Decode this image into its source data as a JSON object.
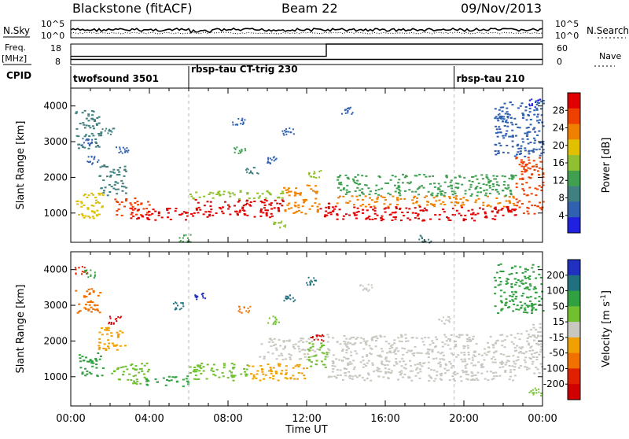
{
  "header": {
    "station": "Blackstone (fitACF)",
    "beam": "Beam 22",
    "date": "09/Nov/2013"
  },
  "noise_panel": {
    "left_label": "N.Sky",
    "right_label": "N.Search",
    "left_ticks": [
      "10^5",
      "10^0"
    ],
    "right_ticks": [
      "10^5",
      "10^0"
    ]
  },
  "freq_panel": {
    "freq_label": "Freq.",
    "freq_unit": "[MHz]",
    "left_ticks": [
      "18",
      "8"
    ],
    "right_ticks": [
      "60",
      "0"
    ],
    "nave_label": "Nave",
    "freq_value_mhz": 10.5,
    "nave_before": 24,
    "nave_after": 60,
    "nave_switch_hour": 13.0
  },
  "cpid": {
    "label": "CPID",
    "programs": [
      {
        "name": "twofsound 3501",
        "start_hour": 0.0
      },
      {
        "name": "rbsp-tau CT-trig 230",
        "start_hour": 6.0
      },
      {
        "name": "rbsp-tau 210",
        "start_hour": 19.5
      }
    ]
  },
  "colorbars": {
    "power": {
      "label": "Power [dB]",
      "ticks": [
        "28",
        "24",
        "20",
        "16",
        "12",
        "8",
        "4"
      ],
      "colors": [
        "#e00000",
        "#f04000",
        "#f08000",
        "#e0c000",
        "#90c030",
        "#40a050",
        "#408080",
        "#3060b0",
        "#2020e0"
      ]
    },
    "velocity": {
      "label": "Velocity [m s",
      "label_sup": "-1",
      "label_end": "]",
      "ticks": [
        "200",
        "100",
        "50",
        "15",
        "-15",
        "-50",
        "-100",
        "-200"
      ],
      "colors": [
        "#2030c0",
        "#207080",
        "#30a040",
        "#70c030",
        "#c8c8c0",
        "#f0a000",
        "#f07000",
        "#e02000",
        "#d00000"
      ]
    }
  },
  "chart_data": [
    {
      "type": "heatmap",
      "title": "Power",
      "xlabel": "Time UT",
      "ylabel": "Slant Range [km]",
      "xlim": [
        0,
        24
      ],
      "ylim": [
        180,
        4500
      ],
      "x_ticks": [
        "00:00",
        "04:00",
        "08:00",
        "12:00",
        "16:00",
        "20:00",
        "00:00"
      ],
      "y_ticks": [
        "1000",
        "2000",
        "3000",
        "4000"
      ],
      "colorbar": "Power [dB]",
      "bands": [
        {
          "t0": 0.2,
          "t1": 1.6,
          "r0": 800,
          "r1": 1600,
          "value": 18
        },
        {
          "t0": 1.4,
          "t1": 2.8,
          "r0": 1500,
          "r1": 2400,
          "value": 10
        },
        {
          "t0": 2.2,
          "t1": 4.0,
          "r0": 950,
          "r1": 1450,
          "value": 24
        },
        {
          "t0": 3.0,
          "t1": 6.0,
          "r0": 800,
          "r1": 1150,
          "value": 28
        },
        {
          "t0": 6.0,
          "t1": 10.8,
          "r0": 900,
          "r1": 1400,
          "value": 27
        },
        {
          "t0": 6.0,
          "t1": 10.8,
          "r0": 1400,
          "r1": 1650,
          "value": 16
        },
        {
          "t0": 10.8,
          "t1": 12.6,
          "r0": 1000,
          "r1": 1800,
          "value": 22
        },
        {
          "t0": 12.6,
          "t1": 13.5,
          "r0": 900,
          "r1": 1300,
          "value": 28
        },
        {
          "t0": 13.5,
          "t1": 22.6,
          "r0": 800,
          "r1": 1200,
          "value": 28
        },
        {
          "t0": 13.5,
          "t1": 22.6,
          "r0": 1200,
          "r1": 1500,
          "value": 22
        },
        {
          "t0": 13.5,
          "t1": 22.6,
          "r0": 1500,
          "r1": 2100,
          "value": 13
        },
        {
          "t0": 22.6,
          "t1": 24.0,
          "r0": 1000,
          "r1": 2600,
          "value": 26
        },
        {
          "t0": 0.2,
          "t1": 1.5,
          "r0": 2800,
          "r1": 3900,
          "value": 9
        },
        {
          "t0": 21.5,
          "t1": 24.0,
          "r0": 2600,
          "r1": 4200,
          "value": 8
        }
      ],
      "scatter_points": [
        {
          "t": 0.8,
          "r": 3000,
          "value": 6
        },
        {
          "t": 1.1,
          "r": 2500,
          "value": 8
        },
        {
          "t": 1.9,
          "r": 3300,
          "value": 10
        },
        {
          "t": 2.6,
          "r": 2800,
          "value": 7
        },
        {
          "t": 5.8,
          "r": 300,
          "value": 12
        },
        {
          "t": 8.5,
          "r": 3600,
          "value": 6
        },
        {
          "t": 8.6,
          "r": 2800,
          "value": 14
        },
        {
          "t": 9.2,
          "r": 2200,
          "value": 10
        },
        {
          "t": 10.2,
          "r": 2500,
          "value": 8
        },
        {
          "t": 10.6,
          "r": 700,
          "value": 17
        },
        {
          "t": 11.0,
          "r": 3300,
          "value": 6
        },
        {
          "t": 12.4,
          "r": 2100,
          "value": 15
        },
        {
          "t": 14.0,
          "r": 3900,
          "value": 6
        },
        {
          "t": 18.0,
          "r": 300,
          "value": 9
        },
        {
          "t": 22.0,
          "r": 3700,
          "value": 6
        },
        {
          "t": 23.6,
          "r": 4100,
          "value": 5
        }
      ]
    },
    {
      "type": "heatmap",
      "title": "Velocity",
      "xlabel": "Time UT",
      "ylabel": "Slant Range [km]",
      "xlim": [
        0,
        24
      ],
      "ylim": [
        180,
        4500
      ],
      "x_ticks": [
        "00:00",
        "04:00",
        "08:00",
        "12:00",
        "16:00",
        "20:00",
        "00:00"
      ],
      "y_ticks": [
        "1000",
        "2000",
        "3000",
        "4000"
      ],
      "colorbar": "Velocity [m s^-1]",
      "bands": [
        {
          "t0": 0.2,
          "t1": 1.5,
          "r0": 2800,
          "r1": 3500,
          "value": -100
        },
        {
          "t0": 0.3,
          "t1": 1.6,
          "r0": 1000,
          "r1": 1700,
          "value": 120
        },
        {
          "t0": 1.3,
          "t1": 2.8,
          "r0": 1700,
          "r1": 2400,
          "value": -60
        },
        {
          "t0": 2.0,
          "t1": 4.0,
          "r0": 800,
          "r1": 1400,
          "value": 40
        },
        {
          "t0": 3.8,
          "t1": 6.0,
          "r0": 750,
          "r1": 1050,
          "value": 120
        },
        {
          "t0": 6.0,
          "t1": 9.0,
          "r0": 900,
          "r1": 1400,
          "value": 40
        },
        {
          "t0": 9.0,
          "t1": 12.0,
          "r0": 900,
          "r1": 1400,
          "value": -50
        },
        {
          "t0": 9.5,
          "t1": 12.5,
          "r0": 1500,
          "r1": 2100,
          "value": -20
        },
        {
          "t0": 12.0,
          "t1": 13.0,
          "r0": 1200,
          "r1": 2000,
          "value": 30
        },
        {
          "t0": 13.0,
          "t1": 22.6,
          "r0": 900,
          "r1": 2200,
          "value": 0
        },
        {
          "t0": 22.6,
          "t1": 24.0,
          "r0": 1100,
          "r1": 2500,
          "value": 0
        },
        {
          "t0": 21.5,
          "t1": 24.0,
          "r0": 2800,
          "r1": 4200,
          "value": 90
        }
      ],
      "scatter_points": [
        {
          "t": 0.5,
          "r": 4000,
          "value": -150
        },
        {
          "t": 1.0,
          "r": 3900,
          "value": 100
        },
        {
          "t": 2.2,
          "r": 2600,
          "value": -200
        },
        {
          "t": 5.5,
          "r": 3000,
          "value": 150
        },
        {
          "t": 6.5,
          "r": 3300,
          "value": 180
        },
        {
          "t": 8.8,
          "r": 2900,
          "value": -100
        },
        {
          "t": 10.3,
          "r": 2600,
          "value": 60
        },
        {
          "t": 11.1,
          "r": 3200,
          "value": 140
        },
        {
          "t": 12.2,
          "r": 3700,
          "value": 160
        },
        {
          "t": 12.5,
          "r": 2100,
          "value": -200
        },
        {
          "t": 15.0,
          "r": 3500,
          "value": 0
        },
        {
          "t": 19.0,
          "r": 2600,
          "value": 0
        },
        {
          "t": 23.6,
          "r": 600,
          "value": 60
        }
      ]
    }
  ]
}
